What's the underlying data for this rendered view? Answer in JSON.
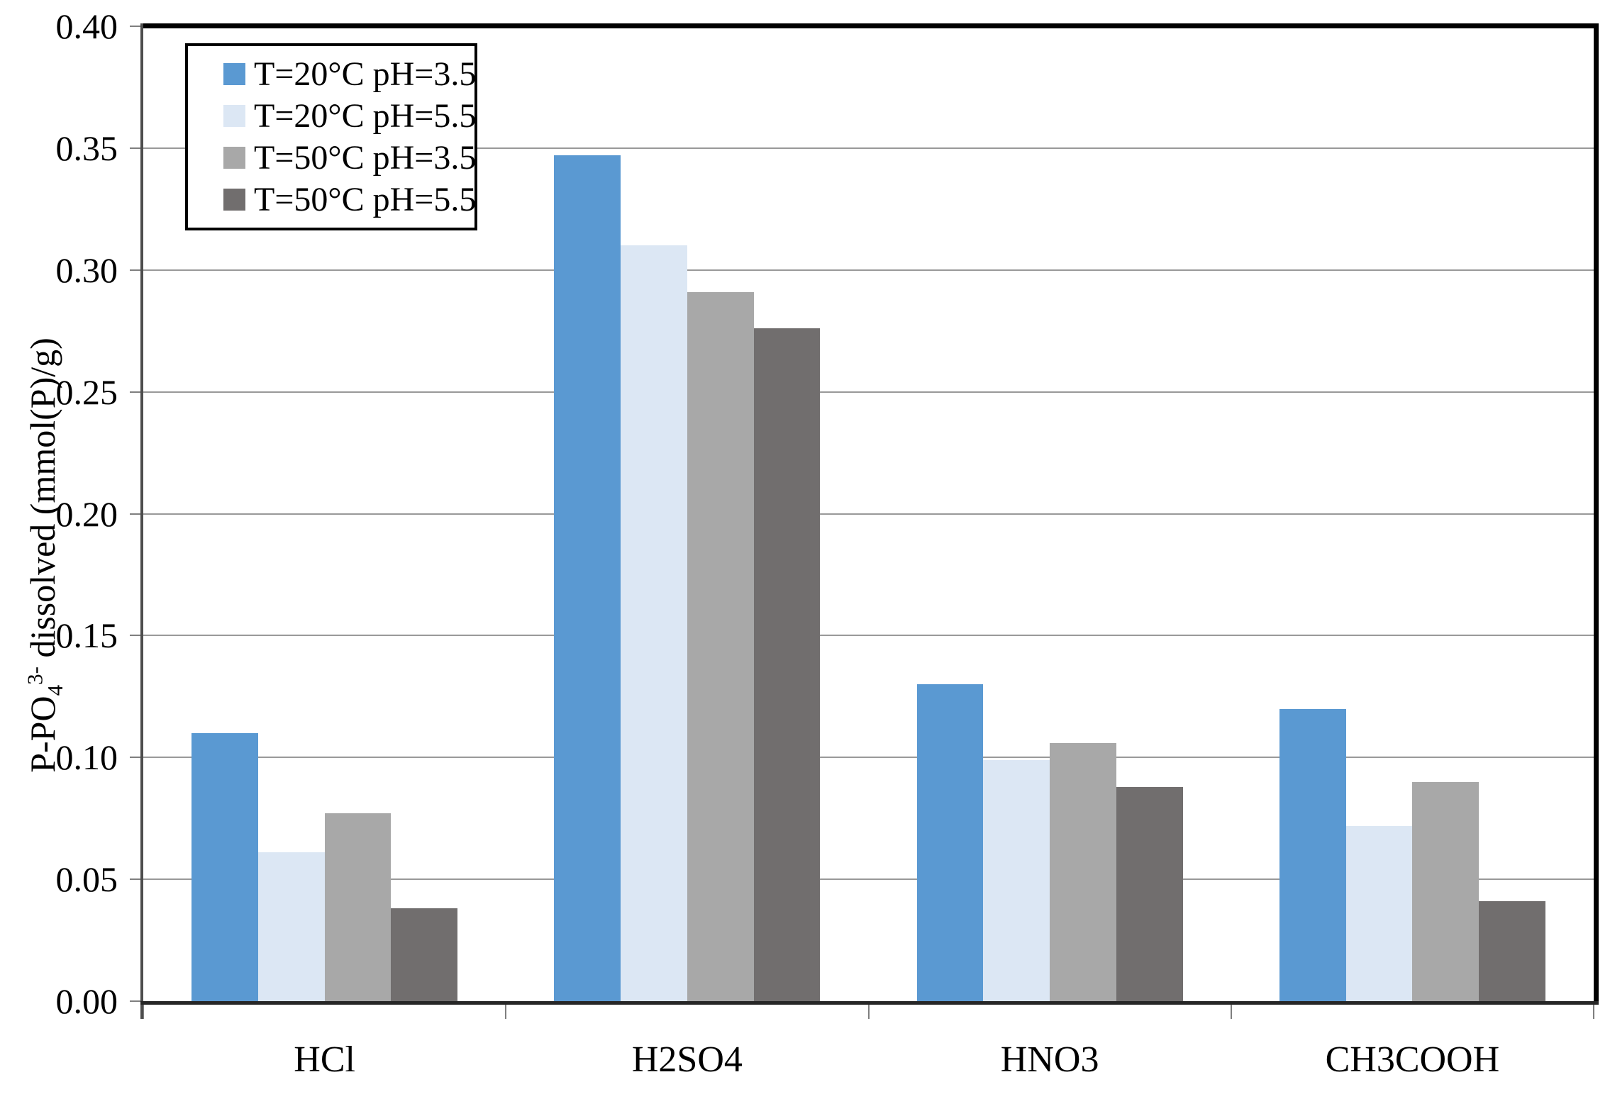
{
  "page": {
    "background": "#FFFFFF"
  },
  "chart_data": {
    "type": "bar",
    "title": "",
    "xlabel": "",
    "ylabel": "P-PO₄³⁻ dissolved (mmol(P)/g)",
    "ylabel_parts": {
      "prefix": "P-PO",
      "sub": "4",
      "sup": "3-",
      "suffix": " dissolved (mmol(P)/g)"
    },
    "categories": [
      "HCl",
      "H2SO4",
      "HNO3",
      "CH3COOH"
    ],
    "series": [
      {
        "name": "T=20°C pH=3.5",
        "color": "#5A99D2",
        "values": [
          0.11,
          0.347,
          0.13,
          0.12
        ]
      },
      {
        "name": "T=20°C pH=5.5",
        "color": "#DCE7F4",
        "values": [
          0.061,
          0.31,
          0.099,
          0.072
        ]
      },
      {
        "name": "T=50°C pH=3.5",
        "color": "#A8A8A8",
        "values": [
          0.077,
          0.291,
          0.106,
          0.09
        ]
      },
      {
        "name": "T=50°C pH=5.5",
        "color": "#716E6E",
        "values": [
          0.038,
          0.276,
          0.088,
          0.041
        ]
      }
    ],
    "y_axis": {
      "min": 0,
      "max": 0.4,
      "step": 0.05,
      "tick_labels": [
        "0.00",
        "0.05",
        "0.10",
        "0.15",
        "0.20",
        "0.25",
        "0.30",
        "0.35",
        "0.40"
      ]
    },
    "grid": true,
    "legend_position": "top-left",
    "colors": {
      "gridline": "#999999",
      "axis_line": "#4D4D4D",
      "tick": "#7F7F7F",
      "frame": "#000000",
      "background": "#FFFFFF"
    }
  }
}
